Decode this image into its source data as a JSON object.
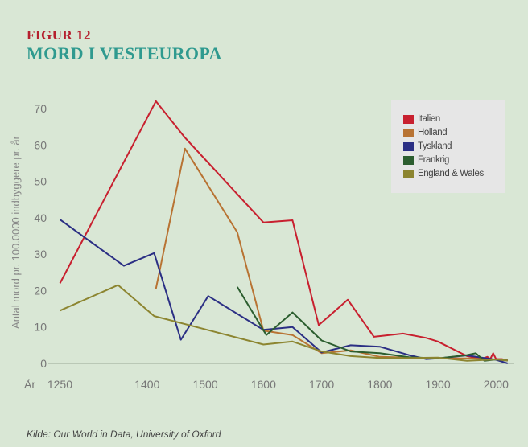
{
  "header": {
    "figure_label": "FIGUR 12",
    "title": "MORD I VESTEUROPA"
  },
  "source": "Kilde: Our World in Data, University of Oxford",
  "chart_data": {
    "type": "line",
    "ylabel": "Antal mord pr. 100.0000 indbyggere pr. år",
    "xlabel": "År",
    "xlim": [
      1230,
      2030
    ],
    "ylim": [
      0,
      75
    ],
    "x_ticks": [
      "1250",
      "1400",
      "1500",
      "1600",
      "1700",
      "1800",
      "1900",
      "2000"
    ],
    "x_tick_values": [
      1250,
      1400,
      1500,
      1600,
      1700,
      1800,
      1900,
      2000
    ],
    "y_ticks": [
      "0",
      "10",
      "20",
      "30",
      "40",
      "50",
      "60",
      "70"
    ],
    "y_tick_values": [
      0,
      10,
      20,
      30,
      40,
      50,
      60,
      70
    ],
    "legend_position": "top-right",
    "series": [
      {
        "name": "Italien",
        "color": "#c8202f",
        "x": [
          1250,
          1415,
          1465,
          1600,
          1650,
          1695,
          1745,
          1790,
          1840,
          1880,
          1900,
          1950,
          1975,
          1985,
          1990,
          1995,
          2000,
          2010,
          2020
        ],
        "y": [
          22,
          72,
          62,
          38.7,
          39.3,
          10.5,
          17.5,
          7.3,
          8.2,
          7,
          6,
          2,
          1.2,
          1.8,
          1.2,
          2.8,
          1.2,
          1.2,
          0.8
        ]
      },
      {
        "name": "Holland",
        "color": "#b87333",
        "x": [
          1415,
          1465,
          1555,
          1600,
          1650,
          1700,
          1750,
          1800,
          1850,
          1900,
          1950,
          2000,
          2020
        ],
        "y": [
          20.5,
          59,
          36,
          9,
          7.8,
          2.8,
          3.6,
          1.8,
          1.6,
          1.4,
          1.4,
          1.1,
          0.8
        ]
      },
      {
        "name": "Tyskland",
        "color": "#2b2f84",
        "x": [
          1250,
          1360,
          1412,
          1458,
          1505,
          1600,
          1650,
          1700,
          1750,
          1800,
          1850,
          1880,
          1900,
          1950,
          2000,
          2020
        ],
        "y": [
          39.5,
          26.8,
          30.3,
          6.5,
          18.5,
          9.2,
          10,
          3,
          5,
          4.6,
          2.3,
          1.2,
          1.4,
          2.2,
          1,
          0
        ]
      },
      {
        "name": "Frankrig",
        "color": "#2c5e2f",
        "x": [
          1555,
          1605,
          1650,
          1700,
          1750,
          1800,
          1850,
          1900,
          1950,
          1965,
          1980,
          2000,
          2020
        ],
        "y": [
          21,
          7.8,
          14,
          6.3,
          3.3,
          2.8,
          1.7,
          1.4,
          2.3,
          2.8,
          0.7,
          1.1,
          0.8
        ]
      },
      {
        "name": "England & Wales",
        "color": "#8c8530",
        "x": [
          1250,
          1350,
          1412,
          1600,
          1650,
          1700,
          1750,
          1800,
          1850,
          1900,
          1950,
          2000,
          2020
        ],
        "y": [
          14.5,
          21.5,
          13,
          5.2,
          6,
          3.3,
          2,
          1.5,
          1.5,
          1.6,
          0.7,
          1.1,
          0.8
        ]
      }
    ]
  }
}
